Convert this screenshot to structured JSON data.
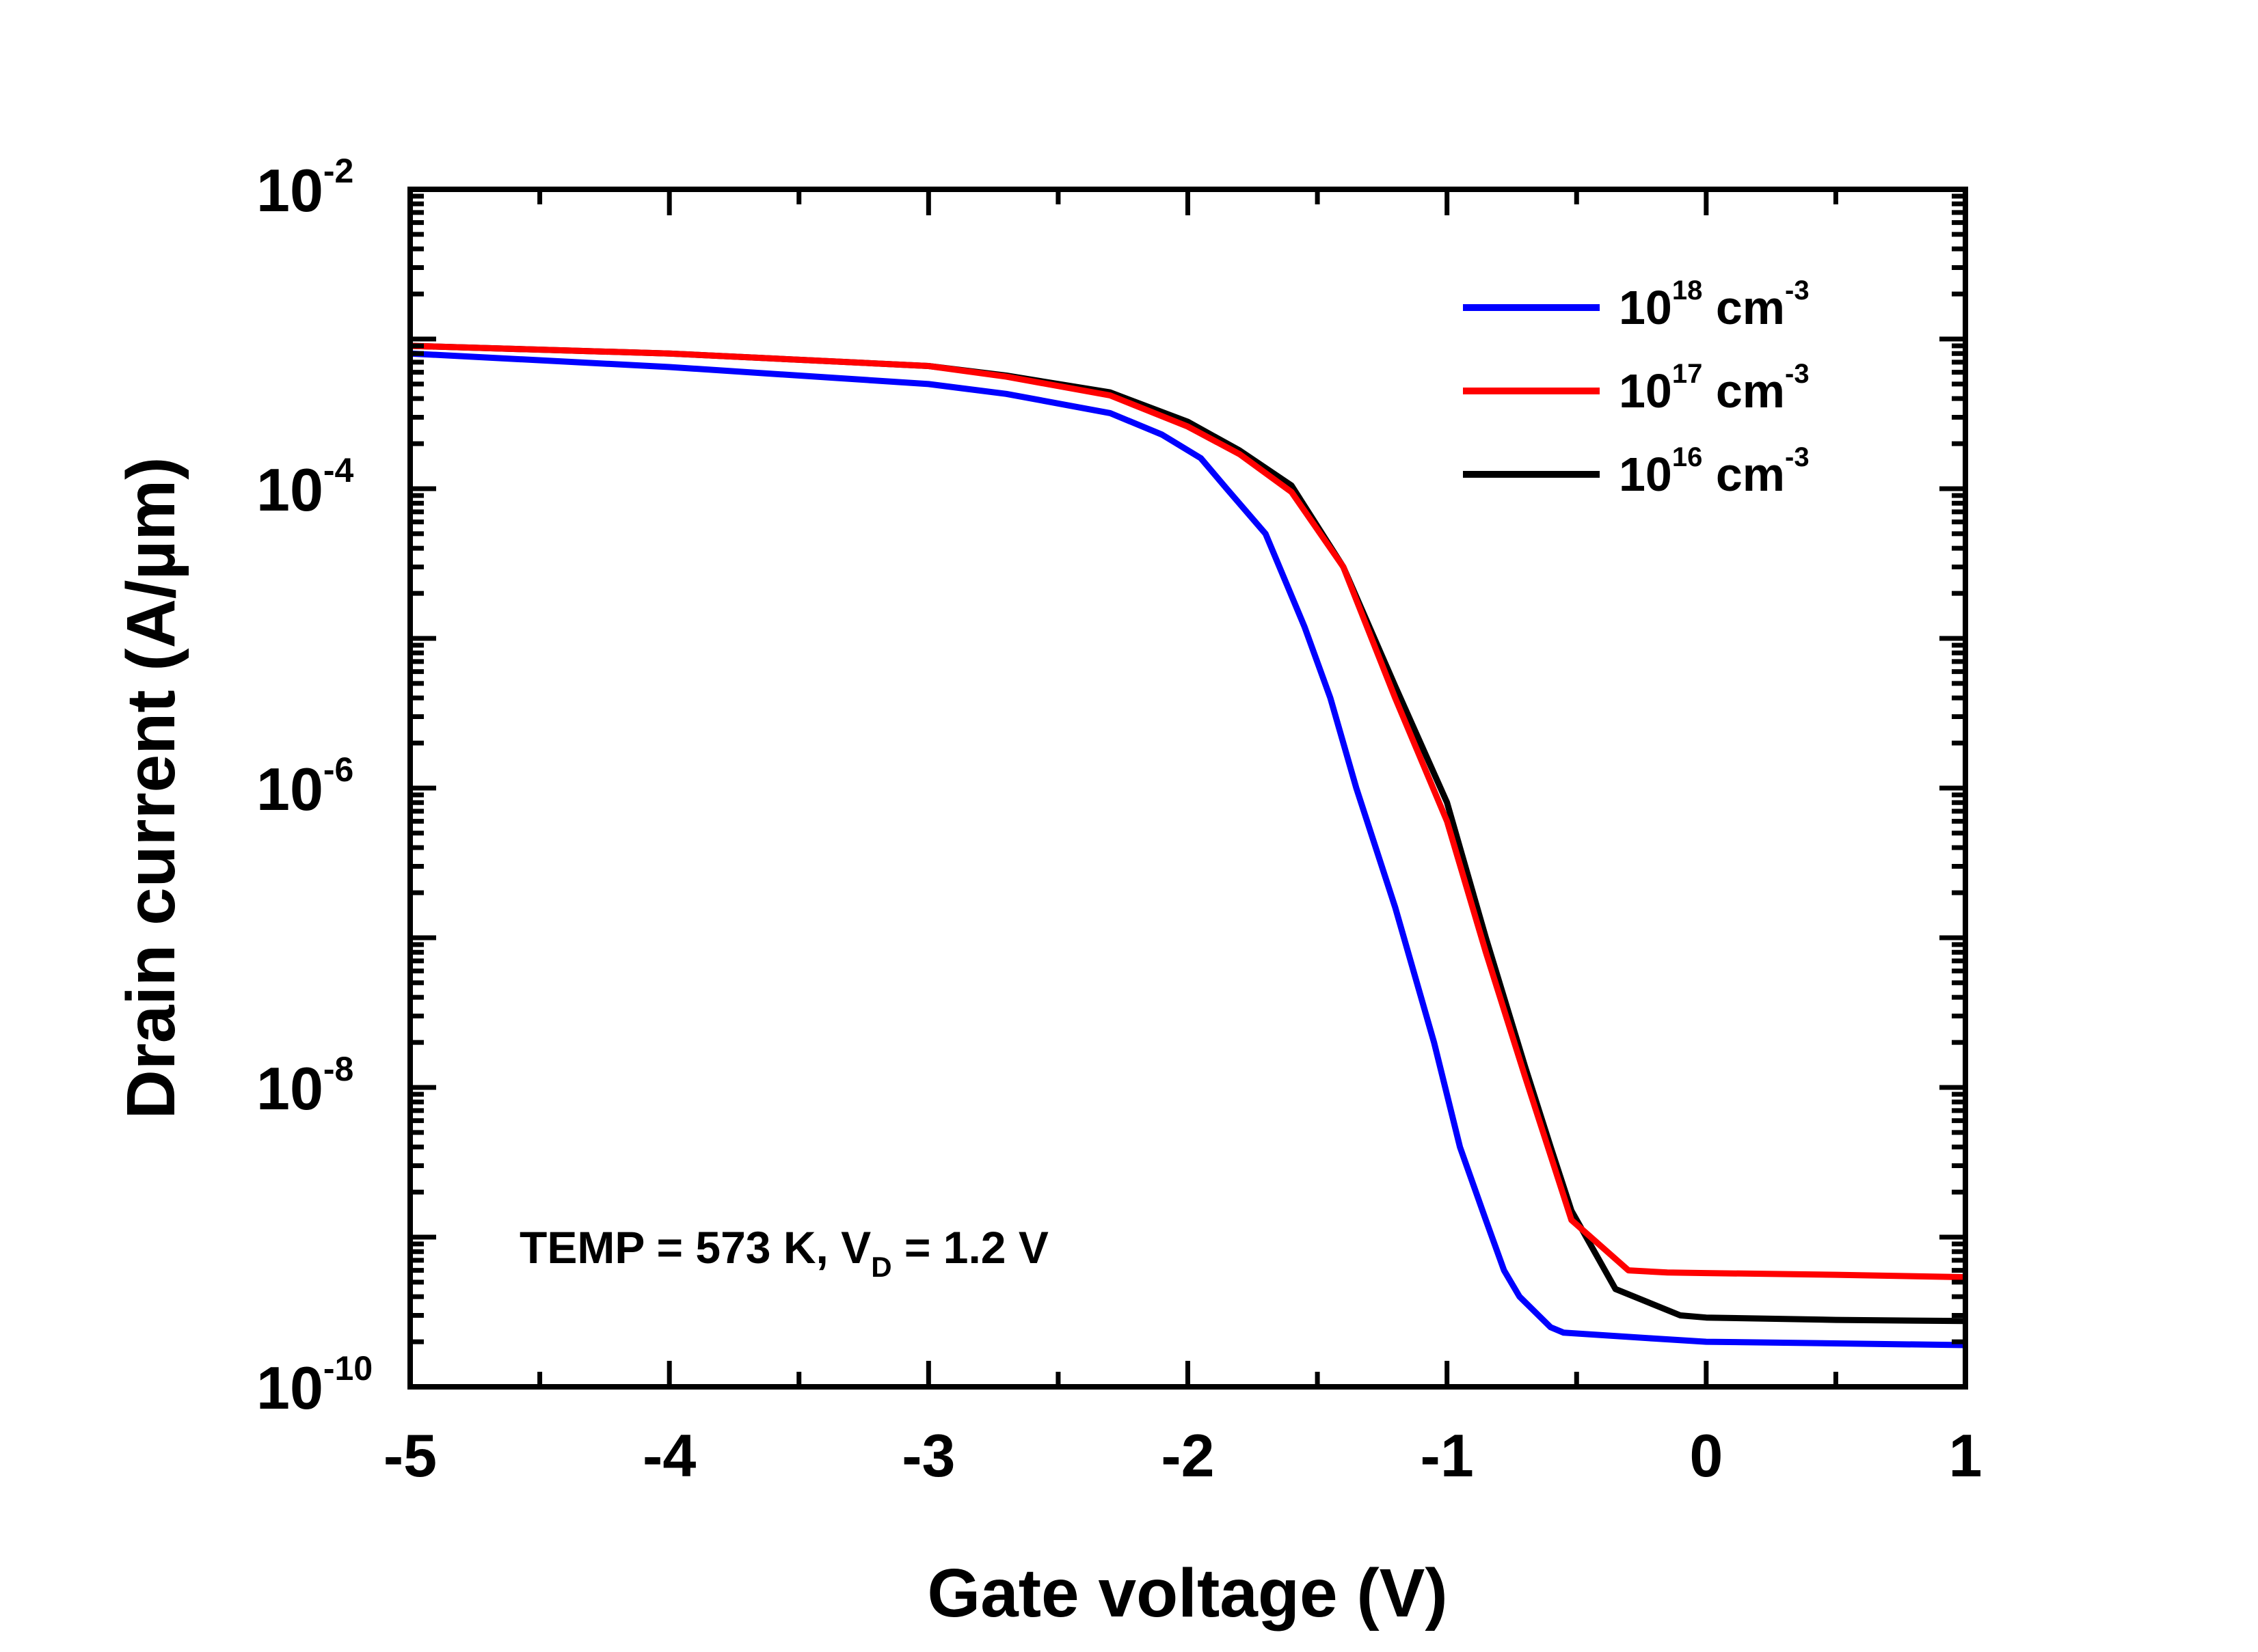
{
  "chart_data": {
    "type": "line",
    "title": "",
    "xlabel": "Gate voltage (V)",
    "ylabel": "Drain current (A/µm)",
    "xlim": [
      -5,
      1
    ],
    "ylim": [
      1e-10,
      0.01
    ],
    "y_scale": "log",
    "grid": false,
    "legend_position": "top-right",
    "x_ticks": [
      -5,
      -4,
      -3,
      -2,
      -1,
      0,
      1
    ],
    "x_tick_labels": [
      "-5",
      "-4",
      "-3",
      "-2",
      "-1",
      "0",
      "1"
    ],
    "y_ticks": [
      {
        "value": 1e-10,
        "base": "10",
        "exp": "-10"
      },
      {
        "value": 1e-08,
        "base": "10",
        "exp": "-8"
      },
      {
        "value": 1e-06,
        "base": "10",
        "exp": "-6"
      },
      {
        "value": 0.0001,
        "base": "10",
        "exp": "-4"
      },
      {
        "value": 0.01,
        "base": "10",
        "exp": "-2"
      }
    ],
    "annotation": {
      "text": "TEMP = 573 K, V",
      "sub": "D",
      "tail": " = 1.2 V"
    },
    "series": [
      {
        "label_base": "10",
        "label_exp": "18",
        "label_unit": " cm",
        "label_unit_exp": "-3",
        "color": "#0000ff",
        "x": [
          -5.0,
          -4.0,
          -3.0,
          -2.7,
          -2.3,
          -2.1,
          -1.95,
          -1.85,
          -1.7,
          -1.55,
          -1.45,
          -1.35,
          -1.2,
          -1.05,
          -0.95,
          -0.85,
          -0.78,
          -0.72,
          -0.6,
          -0.55,
          -0.2,
          0.0,
          0.5,
          1.0
        ],
        "y": [
          0.0008,
          0.00065,
          0.0005,
          0.00043,
          0.00032,
          0.00023,
          0.00016,
          0.0001,
          5e-05,
          1.2e-05,
          4e-06,
          1e-06,
          1.6e-07,
          2e-08,
          4e-09,
          1.3e-09,
          6e-10,
          4e-10,
          2.5e-10,
          2.3e-10,
          2.1e-10,
          2e-10,
          1.95e-10,
          1.9e-10
        ]
      },
      {
        "label_base": "10",
        "label_exp": "17",
        "label_unit": " cm",
        "label_unit_exp": "-3",
        "color": "#ff0000",
        "x": [
          -5.0,
          -4.0,
          -3.0,
          -2.7,
          -2.3,
          -2.0,
          -1.8,
          -1.6,
          -1.4,
          -1.2,
          -1.0,
          -0.85,
          -0.7,
          -0.6,
          -0.52,
          -0.3,
          -0.15,
          0.0,
          0.5,
          1.0
        ],
        "y": [
          0.0009,
          0.0008,
          0.00066,
          0.00056,
          0.00042,
          0.00026,
          0.00017,
          9.5e-05,
          3e-05,
          4e-06,
          6e-07,
          8e-08,
          1.2e-08,
          3.5e-09,
          1.3e-09,
          6e-10,
          5.8e-10,
          5.75e-10,
          5.6e-10,
          5.4e-10
        ]
      },
      {
        "label_base": "10",
        "label_exp": "16",
        "label_unit": " cm",
        "label_unit_exp": "-3",
        "color": "#000000",
        "x": [
          -5.0,
          -4.0,
          -3.0,
          -2.7,
          -2.3,
          -2.0,
          -1.8,
          -1.6,
          -1.4,
          -1.2,
          -1.0,
          -0.85,
          -0.7,
          -0.6,
          -0.52,
          -0.35,
          -0.1,
          0.0,
          0.5,
          1.0
        ],
        "y": [
          0.0009,
          0.0008,
          0.00066,
          0.00057,
          0.00044,
          0.00028,
          0.00018,
          0.000105,
          3e-05,
          4.8e-06,
          8e-07,
          1e-07,
          1.4e-08,
          4e-09,
          1.5e-09,
          4.5e-10,
          3e-10,
          2.9e-10,
          2.8e-10,
          2.75e-10
        ]
      }
    ]
  }
}
